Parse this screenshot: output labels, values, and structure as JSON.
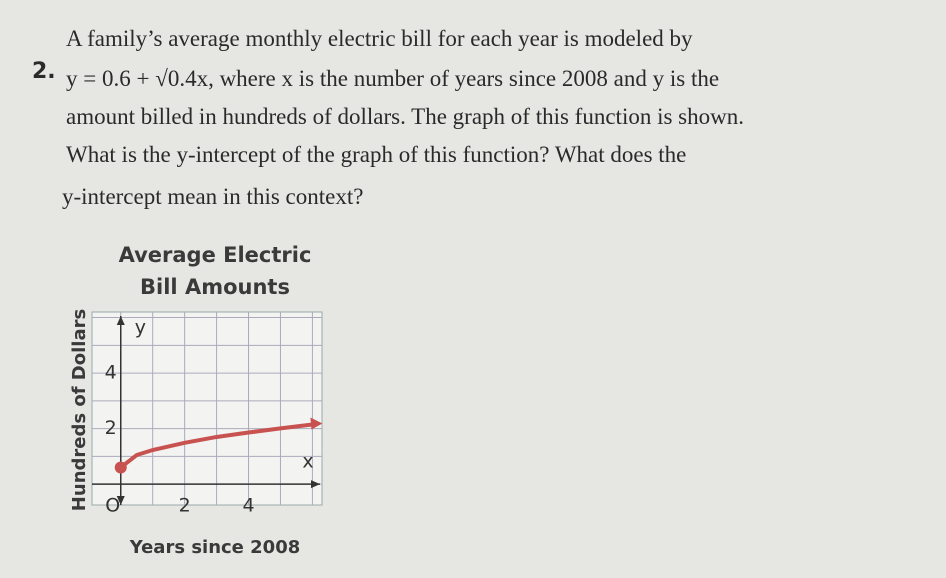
{
  "problem": {
    "number": "2.",
    "lines": [
      "A family’s average monthly electric bill for each year is modeled by",
      "y = 0.6 + √0.4x, where x is the number of years since 2008 and y is the",
      "amount billed in hundreds of dollars. The graph of this function is shown.",
      "What is the y-intercept of the graph of this function? What does the",
      "y-intercept mean in this context?"
    ]
  },
  "chart_data": {
    "type": "line",
    "title": [
      "Average Electric",
      "Bill Amounts"
    ],
    "x_label": "Years since 2008",
    "y_label": "Hundreds of Dollars",
    "x_axis_letter": "x",
    "y_axis_letter": "y",
    "origin_label": "O",
    "x": [
      0,
      0.5,
      1,
      2,
      3,
      4,
      5,
      6
    ],
    "series": [
      {
        "name": "y = 0.6 + √0.4x",
        "color": "#c8524f",
        "values": [
          0.6,
          1.05,
          1.23,
          1.49,
          1.7,
          1.86,
          2.01,
          2.15
        ]
      }
    ],
    "xlim": [
      -0.9,
      6.3
    ],
    "ylim": [
      -0.75,
      6.2
    ],
    "xticks": [
      2,
      4
    ],
    "yticks": [
      2,
      4
    ],
    "grid": true
  }
}
